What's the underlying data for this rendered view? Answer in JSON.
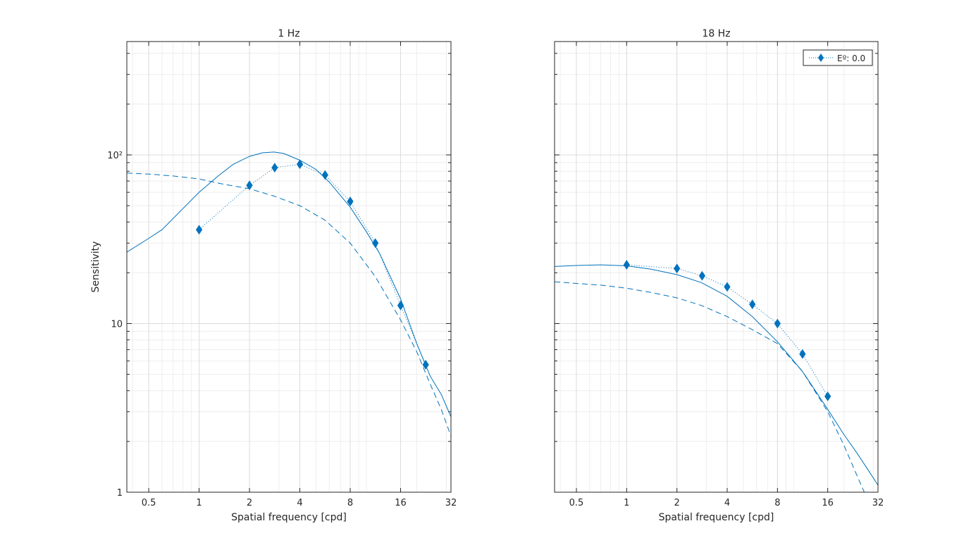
{
  "colors": {
    "series": "#0072BD",
    "grid": "#DCDCDC",
    "axis": "#262626",
    "background": "#FFFFFF"
  },
  "chart_data": [
    {
      "type": "line",
      "title": "1 Hz",
      "xlabel": "Spatial frequency [cpd]",
      "ylabel": "Sensitivity",
      "xscale": "log",
      "yscale": "log",
      "xlim": [
        0.37,
        32
      ],
      "ylim": [
        1,
        470
      ],
      "xticks": [
        0.5,
        1,
        2,
        4,
        8,
        16,
        32
      ],
      "xtick_labels": [
        "0.5",
        "1",
        "2",
        "4",
        "8",
        "16",
        "32"
      ],
      "yticks": [
        1,
        10,
        100
      ],
      "ytick_labels": [
        "1",
        "10",
        "10²"
      ],
      "grid": true,
      "series": [
        {
          "style": "markers-dotted",
          "marker": "diamond",
          "x": [
            1,
            2,
            2.83,
            4,
            5.66,
            8,
            11.3,
            16,
            22.6
          ],
          "y": [
            36,
            66,
            84,
            88,
            76,
            53,
            30,
            12.8,
            5.7
          ]
        },
        {
          "style": "solid",
          "x": [
            0.37,
            0.5,
            0.6,
            0.8,
            1,
            1.3,
            1.6,
            2,
            2.4,
            2.8,
            3.2,
            4,
            5,
            6,
            8,
            10,
            12,
            16,
            20,
            24,
            28,
            32
          ],
          "y": [
            26.5,
            32,
            36,
            48,
            60,
            75,
            88,
            98,
            103,
            104,
            102,
            93,
            82,
            69,
            49,
            35,
            26,
            14,
            7.6,
            4.9,
            3.8,
            2.8
          ]
        },
        {
          "style": "dashed",
          "x": [
            0.37,
            0.5,
            0.7,
            1,
            1.4,
            2,
            2.8,
            4,
            5.66,
            8,
            11.3,
            16,
            20,
            24,
            28,
            32
          ],
          "y": [
            78,
            77,
            75,
            72,
            67,
            63,
            57,
            50,
            41,
            30,
            19,
            10.5,
            6.8,
            4.4,
            3.1,
            2.15
          ]
        }
      ]
    },
    {
      "type": "line",
      "title": "18 Hz",
      "xlabel": "Spatial frequency [cpd]",
      "ylabel": "",
      "xscale": "log",
      "yscale": "log",
      "xlim": [
        0.37,
        32
      ],
      "ylim": [
        1,
        470
      ],
      "xticks": [
        0.5,
        1,
        2,
        4,
        8,
        16,
        32
      ],
      "xtick_labels": [
        "0.5",
        "1",
        "2",
        "4",
        "8",
        "16",
        "32"
      ],
      "yticks": [
        1,
        10,
        100
      ],
      "ytick_labels": [
        "",
        "",
        ""
      ],
      "grid": true,
      "legend": {
        "position": "top-right",
        "entries": [
          "Eº: 0.0"
        ]
      },
      "series": [
        {
          "name": "Eº: 0.0",
          "style": "markers-dotted",
          "marker": "diamond",
          "x": [
            1,
            2,
            2.83,
            4,
            5.66,
            8,
            11.3,
            16
          ],
          "y": [
            22.3,
            21.2,
            19.2,
            16.5,
            13,
            10,
            6.6,
            3.7
          ]
        },
        {
          "style": "solid",
          "x": [
            0.37,
            0.5,
            0.7,
            1,
            1.4,
            2,
            2.8,
            4,
            5.66,
            8,
            11.3,
            16,
            20,
            24,
            28,
            32
          ],
          "y": [
            21.8,
            22.1,
            22.3,
            22,
            21,
            19.5,
            17.5,
            14.5,
            11,
            7.8,
            5.2,
            3.1,
            2.2,
            1.7,
            1.35,
            1.1
          ]
        },
        {
          "style": "dashed",
          "x": [
            0.37,
            0.5,
            0.7,
            1,
            1.4,
            2,
            2.8,
            4,
            5.66,
            8,
            11.3,
            16,
            20,
            24,
            26.5
          ],
          "y": [
            17.7,
            17.3,
            16.9,
            16.2,
            15.3,
            14.2,
            12.8,
            11.0,
            9.2,
            7.6,
            5.2,
            3.0,
            1.9,
            1.25,
            1.0
          ]
        }
      ]
    }
  ]
}
